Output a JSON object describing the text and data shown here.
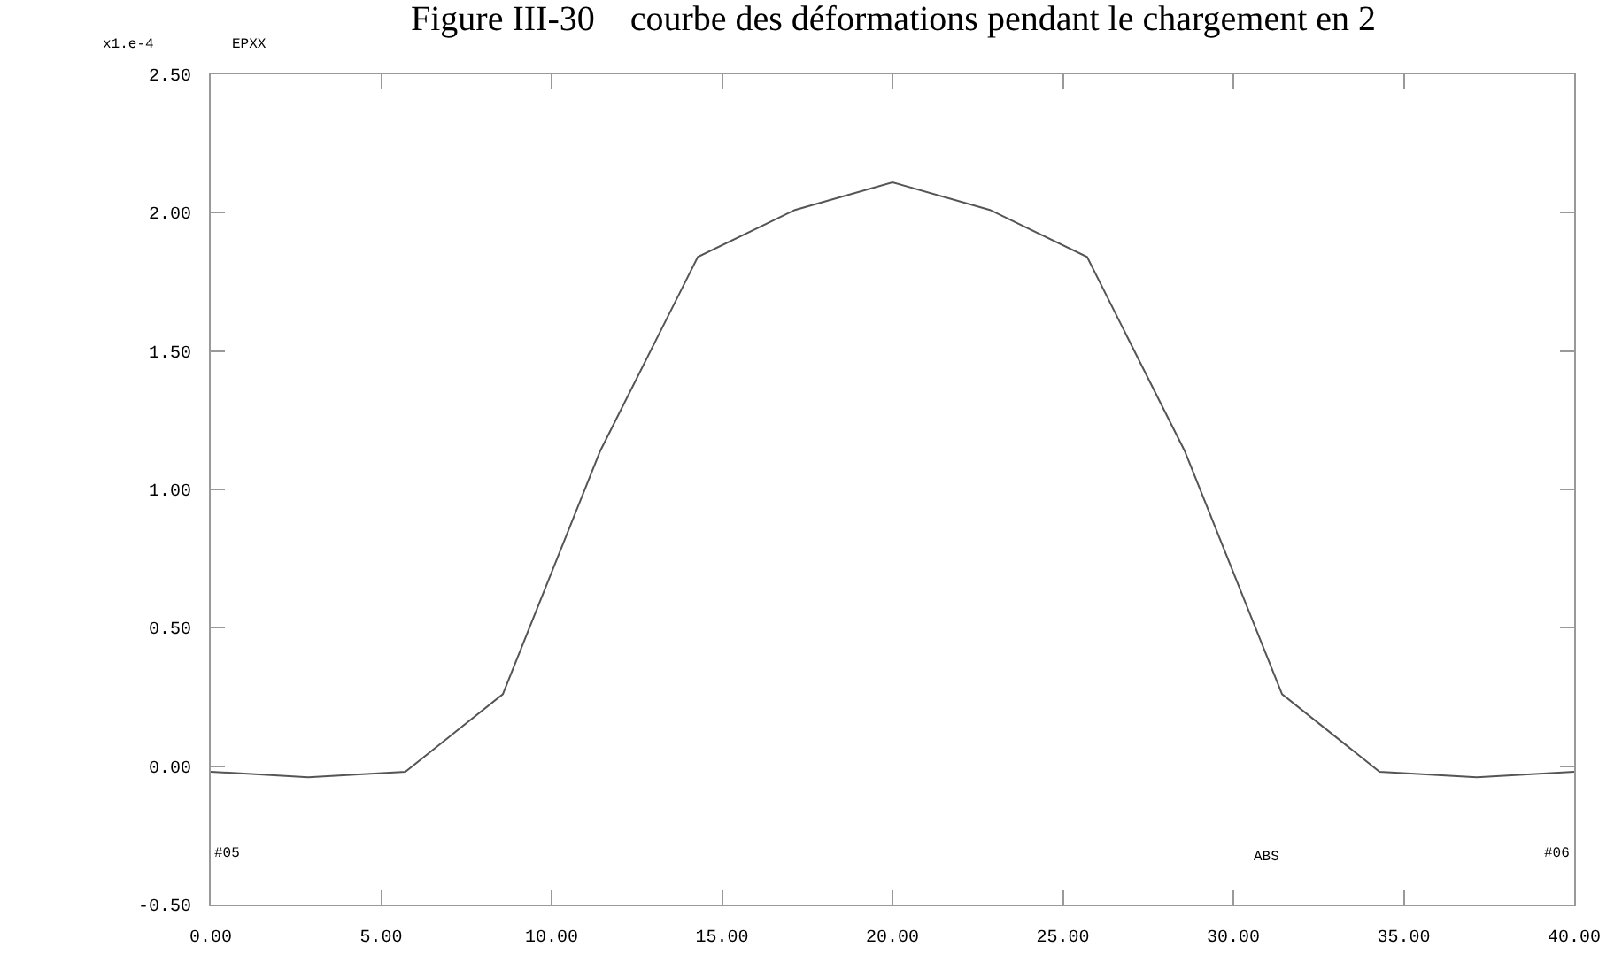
{
  "chart_data": {
    "type": "line",
    "title": "Figure III-30    courbe des déformations pendant le chargement en 2",
    "xlabel": "ABS",
    "ylabel": "x1.e-4",
    "annotations": [
      "EPXX",
      "#05",
      "#06"
    ],
    "x": [
      0,
      2.86,
      5.71,
      8.57,
      11.43,
      14.29,
      17.14,
      20,
      22.86,
      25.71,
      28.57,
      31.43,
      34.29,
      37.14,
      40
    ],
    "series": [
      {
        "color": "#555555",
        "values": [
          -0.02,
          -0.04,
          -0.02,
          0.26,
          1.14,
          1.84,
          2.01,
          2.11,
          2.01,
          1.84,
          1.14,
          0.26,
          -0.02,
          -0.04,
          -0.02
        ]
      }
    ],
    "xlim": [
      0,
      40
    ],
    "ylim": [
      -0.5,
      2.5
    ],
    "xticks": [
      {
        "value": 0,
        "label": "0.00"
      },
      {
        "value": 5,
        "label": "5.00"
      },
      {
        "value": 10,
        "label": "10.00"
      },
      {
        "value": 15,
        "label": "15.00"
      },
      {
        "value": 20,
        "label": "20.00"
      },
      {
        "value": 25,
        "label": "25.00"
      },
      {
        "value": 30,
        "label": "30.00"
      },
      {
        "value": 35,
        "label": "35.00"
      },
      {
        "value": 40,
        "label": "40.00"
      }
    ],
    "yticks": [
      {
        "value": -0.5,
        "label": "-0.50"
      },
      {
        "value": 0,
        "label": "0.00"
      },
      {
        "value": 0.5,
        "label": "0.50"
      },
      {
        "value": 1,
        "label": "1.00"
      },
      {
        "value": 1.5,
        "label": "1.50"
      },
      {
        "value": 2,
        "label": "2.00"
      },
      {
        "value": 2.5,
        "label": "2.50"
      }
    ],
    "marker": "none",
    "line_style": "solid"
  }
}
